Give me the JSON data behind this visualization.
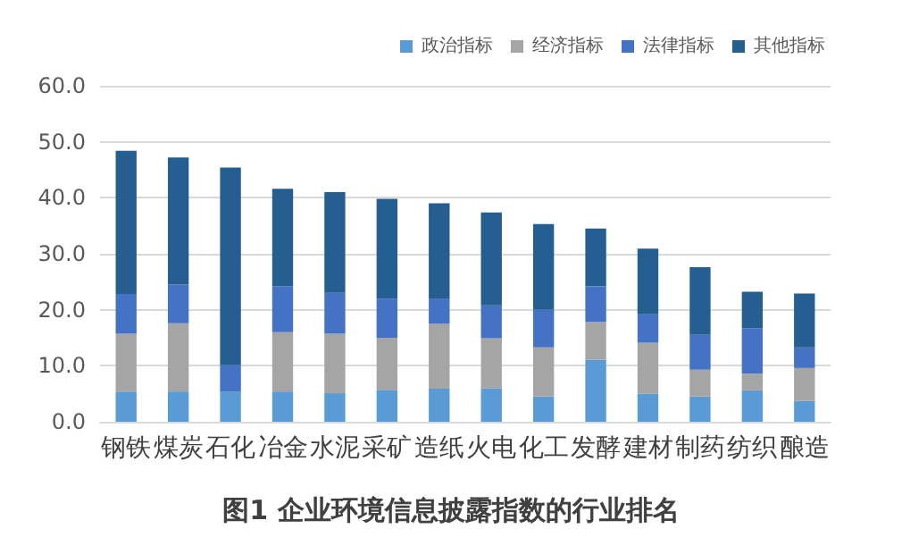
{
  "chart_data": {
    "type": "bar",
    "stacked": true,
    "title": "图1 企业环境信息披露指数的行业排名",
    "categories": [
      "钢铁",
      "煤炭",
      "石化",
      "冶金",
      "水泥",
      "采矿",
      "造纸",
      "火电",
      "化工",
      "发酵",
      "建材",
      "制药",
      "纺织",
      "酿造"
    ],
    "series": [
      {
        "name": "政治指标",
        "color": "#5b9bd5",
        "values": [
          5.4,
          5.4,
          5.4,
          5.4,
          5.1,
          5.7,
          5.9,
          6.0,
          4.5,
          11.1,
          5.0,
          4.5,
          5.6,
          3.7
        ]
      },
      {
        "name": "经济指标",
        "color": "#a5a5a5",
        "values": [
          10.3,
          12.2,
          0,
          10.6,
          10.6,
          9.3,
          11.6,
          8.9,
          8.8,
          6.7,
          9.1,
          4.8,
          3.0,
          5.9
        ]
      },
      {
        "name": "法律指标",
        "color": "#4472c4",
        "values": [
          7.1,
          6.9,
          4.7,
          8.2,
          7.3,
          7.0,
          4.5,
          5.9,
          6.7,
          6.4,
          5.1,
          6.2,
          8.1,
          3.7
        ]
      },
      {
        "name": "其他指标",
        "color": "#255e91",
        "values": [
          25.6,
          22.7,
          35.3,
          17.4,
          18.0,
          17.8,
          17.0,
          16.6,
          15.3,
          10.3,
          11.7,
          12.1,
          6.5,
          9.6
        ]
      }
    ],
    "ylim": [
      0,
      60
    ],
    "yticks": [
      {
        "value": 0,
        "label": "0.0"
      },
      {
        "value": 10,
        "label": "10.0"
      },
      {
        "value": 20,
        "label": "20.0"
      },
      {
        "value": 30,
        "label": "30.0"
      },
      {
        "value": 40,
        "label": "40.0"
      },
      {
        "value": 50,
        "label": "50.0"
      },
      {
        "value": 60,
        "label": "60.0"
      }
    ],
    "grid": "y",
    "legend": "top right"
  }
}
